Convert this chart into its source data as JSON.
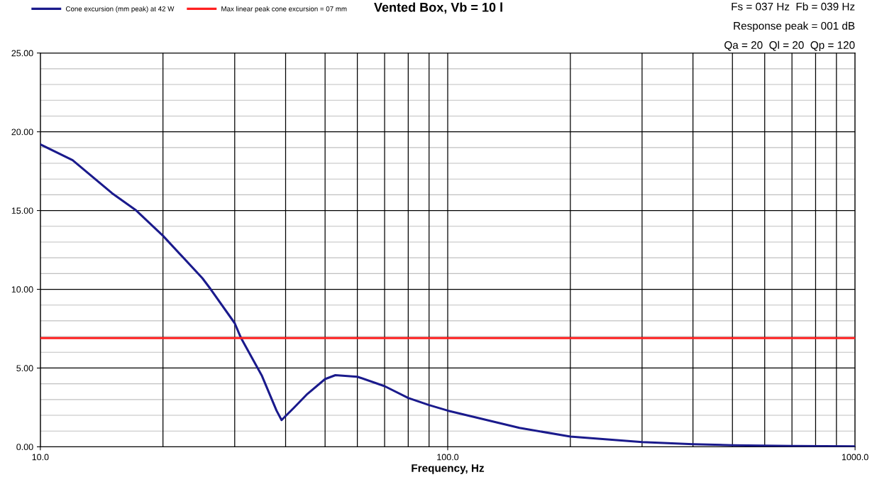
{
  "chart_data": {
    "type": "line",
    "title": "Vented Box, Vb = 10 l",
    "xlabel": "Frequency, Hz",
    "annotations": [
      "Fs = 037 Hz  Fb = 039 Hz",
      "Response peak = 001 dB",
      "Qa = 20  Ql = 20  Qp = 120"
    ],
    "series": [
      {
        "name": "Cone excursion (mm peak) at 42 W",
        "color": "#1a1a8c",
        "x": [
          10,
          12,
          15,
          17.2,
          20,
          25,
          26.2,
          30,
          31.1,
          35,
          38,
          39.1,
          42,
          45,
          50,
          53,
          60,
          70,
          80,
          90,
          100,
          150,
          200,
          300,
          400,
          500,
          700,
          1000
        ],
        "values": [
          19.2,
          18.2,
          16.1,
          15.0,
          13.4,
          10.7,
          10.0,
          7.85,
          6.9,
          4.5,
          2.3,
          1.7,
          2.5,
          3.3,
          4.3,
          4.55,
          4.45,
          3.85,
          3.1,
          2.65,
          2.3,
          1.2,
          0.65,
          0.3,
          0.17,
          0.1,
          0.05,
          0.03
        ]
      },
      {
        "name": "Max linear peak cone excursion = 07 mm",
        "color": "#ff2020",
        "x": [
          10,
          1000
        ],
        "values": [
          6.9,
          6.9
        ]
      }
    ],
    "log": "x",
    "xlim": [
      10,
      1000
    ],
    "xticks": [
      {
        "value": 10,
        "label": "10.0"
      },
      {
        "value": 20,
        "label": null
      },
      {
        "value": 30,
        "label": null
      },
      {
        "value": 40,
        "label": null
      },
      {
        "value": 50,
        "label": null
      },
      {
        "value": 60,
        "label": null
      },
      {
        "value": 70,
        "label": null
      },
      {
        "value": 80,
        "label": null
      },
      {
        "value": 90,
        "label": null
      },
      {
        "value": 100,
        "label": "100.0"
      },
      {
        "value": 200,
        "label": null
      },
      {
        "value": 300,
        "label": null
      },
      {
        "value": 400,
        "label": null
      },
      {
        "value": 500,
        "label": null
      },
      {
        "value": 600,
        "label": null
      },
      {
        "value": 700,
        "label": null
      },
      {
        "value": 800,
        "label": null
      },
      {
        "value": 900,
        "label": null
      },
      {
        "value": 1000,
        "label": "1000.0"
      }
    ],
    "ylim": [
      0,
      25
    ],
    "yticks": [
      {
        "value": 0,
        "label": "0.00"
      },
      {
        "value": 1,
        "label": null
      },
      {
        "value": 2,
        "label": null
      },
      {
        "value": 3,
        "label": null
      },
      {
        "value": 4,
        "label": null
      },
      {
        "value": 5,
        "label": "5.00"
      },
      {
        "value": 6,
        "label": null
      },
      {
        "value": 7,
        "label": null
      },
      {
        "value": 8,
        "label": null
      },
      {
        "value": 9,
        "label": null
      },
      {
        "value": 10,
        "label": "10.00"
      },
      {
        "value": 11,
        "label": null
      },
      {
        "value": 12,
        "label": null
      },
      {
        "value": 13,
        "label": null
      },
      {
        "value": 14,
        "label": null
      },
      {
        "value": 15,
        "label": "15.00"
      },
      {
        "value": 16,
        "label": null
      },
      {
        "value": 17,
        "label": null
      },
      {
        "value": 18,
        "label": null
      },
      {
        "value": 19,
        "label": null
      },
      {
        "value": 20,
        "label": "20.00"
      },
      {
        "value": 21,
        "label": null
      },
      {
        "value": 22,
        "label": null
      },
      {
        "value": 23,
        "label": null
      },
      {
        "value": 24,
        "label": null
      },
      {
        "value": 25,
        "label": "25.00"
      }
    ],
    "grid": true,
    "legend": "top left",
    "marker": "none",
    "line_style": "solid"
  }
}
